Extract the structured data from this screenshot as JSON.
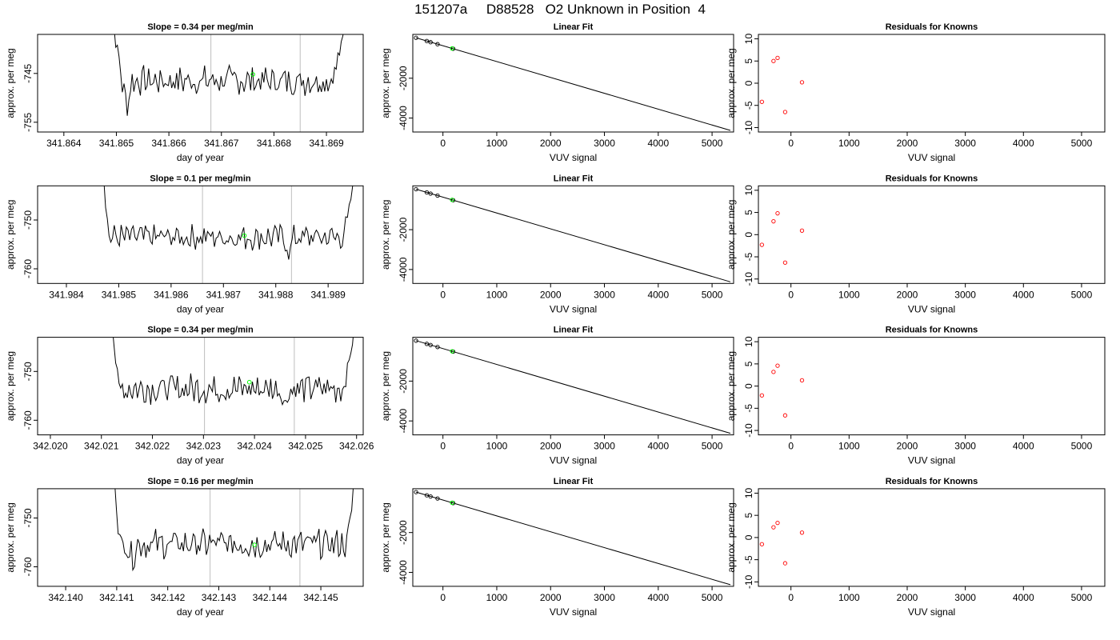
{
  "page_title": "151207a     D88528   O2 Unknown in Position  4",
  "colors": {
    "line": "#000000",
    "vline": "#bebebe",
    "highlight": "#00ff00",
    "residual": "#ff0000"
  },
  "chart_data": [
    {
      "type": "line",
      "panel": "time-series",
      "row": 1,
      "title": "Slope =  0.34  per meg/min",
      "xlabel": "day of year",
      "ylabel": "approx. per meg",
      "xlim": [
        341.8635,
        341.8697
      ],
      "ylim": [
        -757,
        -737
      ],
      "xticks": [
        "341.864",
        "341.865",
        "341.866",
        "341.867",
        "341.868",
        "341.869"
      ],
      "xtick_values": [
        341.864,
        341.865,
        341.866,
        341.867,
        341.868,
        341.869
      ],
      "yticks": [
        "-745",
        "-755"
      ],
      "ytick_values": [
        -745,
        -755
      ],
      "vlines": [
        341.8668,
        341.8685
      ],
      "highlight_point": {
        "x": 341.8676,
        "y": -745.2
      },
      "series_shape": {
        "start": 341.8648,
        "end": 341.8695,
        "base": -746.5,
        "amp": 1.6,
        "left_end": 341.8651,
        "right_start": 341.86905,
        "left_peak": -736,
        "right_peak": -736,
        "dips": [
          {
            "x": 341.8652,
            "depth": 5
          }
        ]
      }
    },
    {
      "type": "scatter",
      "panel": "linear-fit",
      "row": 1,
      "title": "Linear Fit",
      "xlabel": "VUV signal",
      "ylabel": "approx. per meg",
      "xlim": [
        -560,
        5400
      ],
      "ylim": [
        -4700,
        200
      ],
      "xticks": [
        "0",
        "1000",
        "2000",
        "3000",
        "4000",
        "5000"
      ],
      "xtick_values": [
        0,
        1000,
        2000,
        3000,
        4000,
        5000
      ],
      "yticks": [
        "-2000",
        "-4000"
      ],
      "ytick_values": [
        -2000,
        -4000
      ],
      "points": [
        {
          "x": -500,
          "y": 30
        },
        {
          "x": -300,
          "y": -130
        },
        {
          "x": -230,
          "y": -190
        },
        {
          "x": -100,
          "y": -290
        },
        {
          "x": 190,
          "y": -520
        }
      ],
      "highlight_point": {
        "x": 170,
        "y": -505
      },
      "fit_line": [
        {
          "x": -500,
          "y": 30
        },
        {
          "x": 5340,
          "y": -4620
        }
      ]
    },
    {
      "type": "scatter",
      "panel": "residuals",
      "row": 1,
      "title": "Residuals for Knowns",
      "xlabel": "VUV signal",
      "ylabel": "approx. per meg",
      "xlim": [
        -560,
        5400
      ],
      "ylim": [
        -11,
        11
      ],
      "xticks": [
        "0",
        "1000",
        "2000",
        "3000",
        "4000",
        "5000"
      ],
      "xtick_values": [
        0,
        1000,
        2000,
        3000,
        4000,
        5000
      ],
      "yticks": [
        "-10",
        "-5",
        "0",
        "5",
        "10"
      ],
      "ytick_values": [
        -10,
        -5,
        0,
        5,
        10
      ],
      "points": [
        {
          "x": -500,
          "y": -4.2
        },
        {
          "x": -300,
          "y": 5.0
        },
        {
          "x": -230,
          "y": 5.7
        },
        {
          "x": -100,
          "y": -6.5
        },
        {
          "x": 190,
          "y": 0.2
        }
      ]
    },
    {
      "type": "line",
      "panel": "time-series",
      "row": 2,
      "title": "Slope =  0.1  per meg/min",
      "xlabel": "day of year",
      "ylabel": "approx. per meg",
      "xlim": [
        341.98345,
        341.98967
      ],
      "ylim": [
        -763,
        -743
      ],
      "xticks": [
        "341.984",
        "341.985",
        "341.986",
        "341.987",
        "341.988",
        "341.989"
      ],
      "xtick_values": [
        341.984,
        341.985,
        341.986,
        341.987,
        341.988,
        341.989
      ],
      "yticks": [
        "-750",
        "-760"
      ],
      "ytick_values": [
        -750,
        -760
      ],
      "vlines": [
        341.9866,
        341.9883
      ],
      "highlight_point": {
        "x": 341.9874,
        "y": -753.2
      },
      "series_shape": {
        "start": 341.98465,
        "end": 341.9896,
        "base": -753.5,
        "amp": 1.4,
        "left_end": 341.9848,
        "right_start": 341.98925,
        "left_peak": -743,
        "right_peak": -743,
        "dips": [
          {
            "x": 341.98825,
            "depth": 3
          }
        ]
      }
    },
    {
      "type": "scatter",
      "panel": "linear-fit",
      "row": 2,
      "title": "Linear Fit",
      "xlabel": "VUV signal",
      "ylabel": "approx. per meg",
      "xlim": [
        -560,
        5400
      ],
      "ylim": [
        -4700,
        200
      ],
      "xticks": [
        "0",
        "1000",
        "2000",
        "3000",
        "4000",
        "5000"
      ],
      "xtick_values": [
        0,
        1000,
        2000,
        3000,
        4000,
        5000
      ],
      "yticks": [
        "-2000",
        "-4000"
      ],
      "ytick_values": [
        -2000,
        -4000
      ],
      "points": [
        {
          "x": -500,
          "y": 30
        },
        {
          "x": -300,
          "y": -130
        },
        {
          "x": -230,
          "y": -190
        },
        {
          "x": -100,
          "y": -290
        },
        {
          "x": 190,
          "y": -520
        }
      ],
      "highlight_point": {
        "x": 170,
        "y": -505
      },
      "fit_line": [
        {
          "x": -500,
          "y": 30
        },
        {
          "x": 5340,
          "y": -4620
        }
      ]
    },
    {
      "type": "scatter",
      "panel": "residuals",
      "row": 2,
      "title": "Residuals for Knowns",
      "xlabel": "VUV signal",
      "ylabel": "approx. per meg",
      "xlim": [
        -560,
        5400
      ],
      "ylim": [
        -11,
        11
      ],
      "xticks": [
        "0",
        "1000",
        "2000",
        "3000",
        "4000",
        "5000"
      ],
      "xtick_values": [
        0,
        1000,
        2000,
        3000,
        4000,
        5000
      ],
      "yticks": [
        "-10",
        "-5",
        "0",
        "5",
        "10"
      ],
      "ytick_values": [
        -10,
        -5,
        0,
        5,
        10
      ],
      "points": [
        {
          "x": -500,
          "y": -2.3
        },
        {
          "x": -300,
          "y": 3.0
        },
        {
          "x": -230,
          "y": 4.8
        },
        {
          "x": -100,
          "y": -6.3
        },
        {
          "x": 190,
          "y": 0.9
        }
      ]
    },
    {
      "type": "line",
      "panel": "time-series",
      "row": 3,
      "title": "Slope =  0.34  per meg/min",
      "xlabel": "day of year",
      "ylabel": "approx. per meg",
      "xlim": [
        342.01975,
        342.02613
      ],
      "ylim": [
        -763,
        -743
      ],
      "xticks": [
        "342.020",
        "342.021",
        "342.022",
        "342.023",
        "342.024",
        "342.025",
        "342.026"
      ],
      "xtick_values": [
        342.02,
        342.021,
        342.022,
        342.023,
        342.024,
        342.025,
        342.026
      ],
      "yticks": [
        "-750",
        "-760"
      ],
      "ytick_values": [
        -750,
        -760
      ],
      "vlines": [
        342.02302,
        342.02478
      ],
      "highlight_point": {
        "x": 342.0239,
        "y": -752.2
      },
      "series_shape": {
        "start": 342.02115,
        "end": 342.02605,
        "base": -753.5,
        "amp": 1.6,
        "left_end": 342.02132,
        "right_start": 342.0257,
        "left_peak": -743,
        "right_peak": -743,
        "dips": [
          {
            "x": 342.0246,
            "depth": 3
          }
        ]
      }
    },
    {
      "type": "scatter",
      "panel": "linear-fit",
      "row": 3,
      "title": "Linear Fit",
      "xlabel": "VUV signal",
      "ylabel": "approx. per meg",
      "xlim": [
        -560,
        5400
      ],
      "ylim": [
        -4700,
        200
      ],
      "xticks": [
        "0",
        "1000",
        "2000",
        "3000",
        "4000",
        "5000"
      ],
      "xtick_values": [
        0,
        1000,
        2000,
        3000,
        4000,
        5000
      ],
      "yticks": [
        "-2000",
        "-4000"
      ],
      "ytick_values": [
        -2000,
        -4000
      ],
      "points": [
        {
          "x": -500,
          "y": 30
        },
        {
          "x": -300,
          "y": -130
        },
        {
          "x": -230,
          "y": -190
        },
        {
          "x": -100,
          "y": -290
        },
        {
          "x": 190,
          "y": -520
        }
      ],
      "highlight_point": {
        "x": 170,
        "y": -505
      },
      "fit_line": [
        {
          "x": -500,
          "y": 30
        },
        {
          "x": 5340,
          "y": -4620
        }
      ]
    },
    {
      "type": "scatter",
      "panel": "residuals",
      "row": 3,
      "title": "Residuals for Knowns",
      "xlabel": "VUV signal",
      "ylabel": "approx. per meg",
      "xlim": [
        -560,
        5400
      ],
      "ylim": [
        -11,
        11
      ],
      "xticks": [
        "0",
        "1000",
        "2000",
        "3000",
        "4000",
        "5000"
      ],
      "xtick_values": [
        0,
        1000,
        2000,
        3000,
        4000,
        5000
      ],
      "yticks": [
        "-10",
        "-5",
        "0",
        "5",
        "10"
      ],
      "ytick_values": [
        -10,
        -5,
        0,
        5,
        10
      ],
      "points": [
        {
          "x": -500,
          "y": -2.1
        },
        {
          "x": -300,
          "y": 3.2
        },
        {
          "x": -230,
          "y": 4.6
        },
        {
          "x": -100,
          "y": -6.6
        },
        {
          "x": 190,
          "y": 1.3
        }
      ]
    },
    {
      "type": "line",
      "panel": "time-series",
      "row": 4,
      "title": "Slope =  0.16  per meg/min",
      "xlabel": "day of year",
      "ylabel": "approx. per meg",
      "xlim": [
        342.13945,
        342.14583
      ],
      "ylim": [
        -764,
        -744
      ],
      "xticks": [
        "342.140",
        "342.141",
        "342.142",
        "342.143",
        "342.144",
        "342.145"
      ],
      "xtick_values": [
        342.14,
        342.141,
        342.142,
        342.143,
        342.144,
        342.145
      ],
      "yticks": [
        "-750",
        "-760"
      ],
      "ytick_values": [
        -750,
        -760
      ],
      "vlines": [
        342.14283,
        342.14459
      ],
      "highlight_point": {
        "x": 342.1437,
        "y": -755.5
      },
      "series_shape": {
        "start": 342.1409,
        "end": 342.1457,
        "base": -755.3,
        "amp": 1.6,
        "left_end": 342.14105,
        "right_start": 342.1455,
        "left_peak": -744,
        "right_peak": -744,
        "dips": [
          {
            "x": 342.1413,
            "depth": 3
          }
        ]
      }
    },
    {
      "type": "scatter",
      "panel": "linear-fit",
      "row": 4,
      "title": "Linear Fit",
      "xlabel": "VUV signal",
      "ylabel": "approx. per meg",
      "xlim": [
        -560,
        5400
      ],
      "ylim": [
        -4700,
        200
      ],
      "xticks": [
        "0",
        "1000",
        "2000",
        "3000",
        "4000",
        "5000"
      ],
      "xtick_values": [
        0,
        1000,
        2000,
        3000,
        4000,
        5000
      ],
      "yticks": [
        "-2000",
        "-4000"
      ],
      "ytick_values": [
        -2000,
        -4000
      ],
      "points": [
        {
          "x": -500,
          "y": 30
        },
        {
          "x": -300,
          "y": -130
        },
        {
          "x": -230,
          "y": -190
        },
        {
          "x": -100,
          "y": -290
        },
        {
          "x": 190,
          "y": -520
        }
      ],
      "highlight_point": {
        "x": 170,
        "y": -505
      },
      "fit_line": [
        {
          "x": -500,
          "y": 30
        },
        {
          "x": 5340,
          "y": -4620
        }
      ]
    },
    {
      "type": "scatter",
      "panel": "residuals",
      "row": 4,
      "title": "Residuals for Knowns",
      "xlabel": "VUV signal",
      "ylabel": "approx. per meg",
      "xlim": [
        -560,
        5400
      ],
      "ylim": [
        -11,
        11
      ],
      "xticks": [
        "0",
        "1000",
        "2000",
        "3000",
        "4000",
        "5000"
      ],
      "xtick_values": [
        0,
        1000,
        2000,
        3000,
        4000,
        5000
      ],
      "yticks": [
        "-10",
        "-5",
        "0",
        "5",
        "10"
      ],
      "ytick_values": [
        -10,
        -5,
        0,
        5,
        10
      ],
      "points": [
        {
          "x": -500,
          "y": -1.5
        },
        {
          "x": -300,
          "y": 2.3
        },
        {
          "x": -230,
          "y": 3.3
        },
        {
          "x": -100,
          "y": -5.8
        },
        {
          "x": 190,
          "y": 1.1
        }
      ]
    }
  ]
}
